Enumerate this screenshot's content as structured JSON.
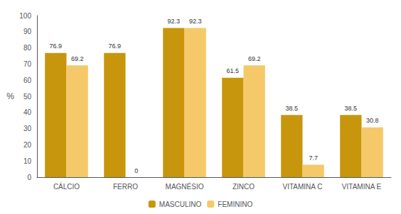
{
  "chart_data": {
    "type": "bar",
    "ylabel": "%",
    "categories": [
      "CÁLCIO",
      "FERRO",
      "MAGNÉSIO",
      "ZINCO",
      "VITAMINA C",
      "VITAMINA E"
    ],
    "series": [
      {
        "name": "MASCULINO",
        "color": "#C8960C",
        "values": [
          76.9,
          76.9,
          92.3,
          61.5,
          38.5,
          38.5
        ]
      },
      {
        "name": "FEMININO",
        "color": "#F5C96A",
        "values": [
          69.2,
          0,
          92.3,
          69.2,
          7.7,
          30.8
        ]
      }
    ],
    "ylim": [
      0,
      100
    ],
    "yticks": [
      0,
      10,
      20,
      30,
      40,
      50,
      60,
      70,
      80,
      90,
      100
    ],
    "grid": false,
    "legend": "bottom",
    "data_labels": true
  }
}
